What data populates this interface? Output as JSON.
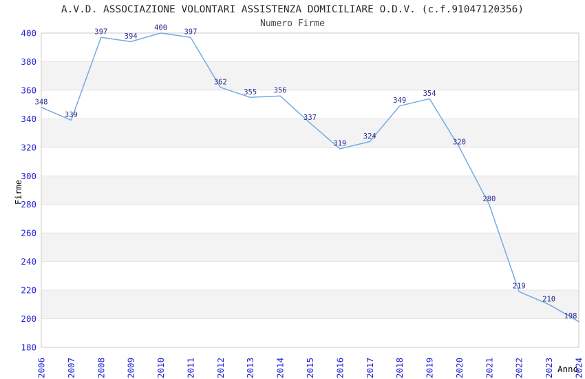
{
  "title": "A.V.D. ASSOCIAZIONE VOLONTARI ASSISTENZA DOMICILIARE O.D.V. (c.f.91047120356)",
  "subtitle": "Numero Firme",
  "chart_data": {
    "type": "line",
    "title": "A.V.D. ASSOCIAZIONE VOLONTARI ASSISTENZA DOMICILIARE O.D.V. (c.f.91047120356)",
    "subtitle": "Numero Firme",
    "xlabel": "Anno",
    "ylabel": "Firme",
    "categories": [
      "2006",
      "2007",
      "2008",
      "2009",
      "2010",
      "2011",
      "2012",
      "2013",
      "2014",
      "2015",
      "2016",
      "2017",
      "2018",
      "2019",
      "2020",
      "2021",
      "2022",
      "2023",
      "2024"
    ],
    "series": [
      {
        "name": "Numero Firme",
        "values": [
          348,
          339,
          397,
          394,
          400,
          397,
          362,
          355,
          356,
          337,
          319,
          324,
          349,
          354,
          320,
          280,
          219,
          210,
          198
        ]
      }
    ],
    "ylim": [
      180,
      400
    ],
    "yticks": [
      180,
      200,
      220,
      240,
      260,
      280,
      300,
      320,
      340,
      360,
      380,
      400
    ],
    "grid": true,
    "banding": "alternate horizontal gray stripes every 20 units",
    "legend": "none",
    "point_labels_visible": true,
    "x_tick_rotation_deg": -90,
    "colors": {
      "line": "#74aae2",
      "axis_tick_label": "#2121d6",
      "point_label": "#2b2b92",
      "band_fill": "#f3f3f3",
      "gridline": "#e5e5e5",
      "frame": "#c9c9c9",
      "title_text": "#2b2b2b",
      "subtitle_text": "#434343",
      "axis_title_text": "#000000",
      "background": "#ffffff"
    }
  }
}
